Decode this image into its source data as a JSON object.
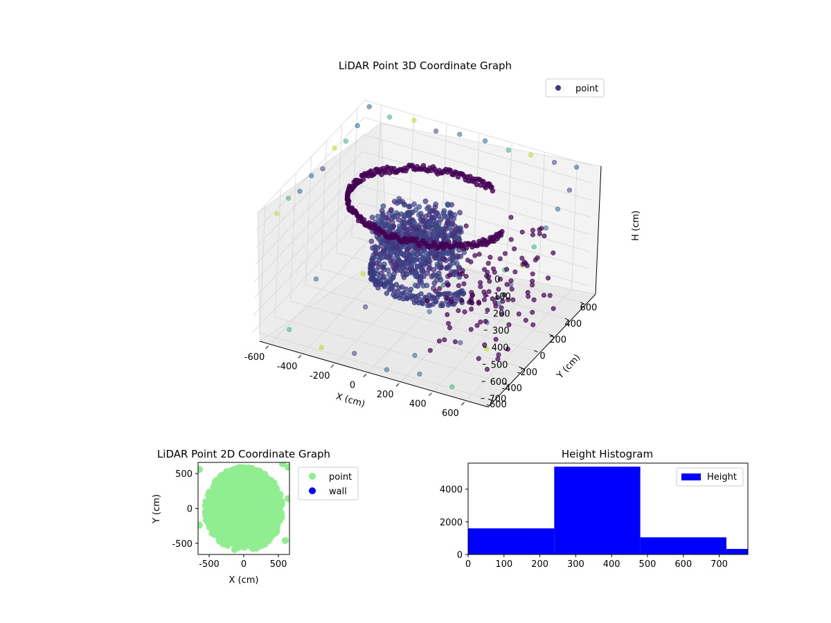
{
  "colors": {
    "point_3d_legend": "#3b3b83",
    "point_2d": "#90ee90",
    "wall_2d": "#0000ff",
    "histogram_bar": "#0000ff",
    "viridis_dark": "#440154",
    "viridis_mid": "#31688e",
    "viridis_teal": "#35b779",
    "viridis_light": "#b8de29",
    "pane_face": "#f2f2f2",
    "grid": "#d6d6d6"
  },
  "chart_data": [
    {
      "type": "scatter",
      "title": "LiDAR Point 3D Coordinate Graph",
      "xlabel": "X (cm)",
      "ylabel": "Y (cm)",
      "zlabel": "H (cm)",
      "xlim": [
        -700,
        700
      ],
      "ylim": [
        -700,
        700
      ],
      "zlim": [
        750,
        0
      ],
      "x_ticks": [
        "-600",
        "-400",
        "-200",
        "0",
        "200",
        "400",
        "600"
      ],
      "y_ticks": [
        "-600",
        "-400",
        "-200",
        "0",
        "200",
        "400",
        "600"
      ],
      "z_ticks": [
        "0",
        "100",
        "200",
        "300",
        "400",
        "500",
        "600",
        "700"
      ],
      "grid": true,
      "legend": {
        "placement": "top-right",
        "entries": [
          "point"
        ]
      },
      "series": [
        {
          "name": "point",
          "ring": {
            "radius": 560,
            "height": 120
          },
          "lower_arc": {
            "radius": 500,
            "height": 480
          },
          "core": {
            "radius": 260,
            "height_min": 200,
            "height_max": 500
          },
          "outliers": [
            [
              -650,
              650,
              0
            ],
            [
              -520,
              640,
              20
            ],
            [
              -380,
              660,
              10
            ],
            [
              -240,
              650,
              30
            ],
            [
              -100,
              660,
              15
            ],
            [
              60,
              650,
              5
            ],
            [
              200,
              660,
              25
            ],
            [
              340,
              650,
              10
            ],
            [
              480,
              660,
              20
            ],
            [
              620,
              650,
              5
            ],
            [
              -650,
              500,
              40
            ],
            [
              -650,
              350,
              60
            ],
            [
              -650,
              200,
              30
            ],
            [
              -650,
              50,
              80
            ],
            [
              -650,
              -100,
              50
            ],
            [
              -650,
              -250,
              70
            ],
            [
              -650,
              -400,
              40
            ],
            [
              -650,
              -550,
              60
            ],
            [
              650,
              500,
              60
            ],
            [
              650,
              350,
              100
            ],
            [
              650,
              200,
              140
            ],
            [
              650,
              50,
              180
            ],
            [
              650,
              -100,
              220
            ],
            [
              650,
              -250,
              260
            ],
            [
              650,
              -400,
              300
            ],
            [
              650,
              -550,
              340
            ],
            [
              -500,
              -650,
              650
            ],
            [
              -300,
              -650,
              700
            ],
            [
              -100,
              -650,
              680
            ],
            [
              100,
              -650,
              720
            ],
            [
              300,
              -650,
              690
            ],
            [
              500,
              -650,
              710
            ],
            [
              -400,
              100,
              650
            ],
            [
              -200,
              -300,
              600
            ],
            [
              0,
              300,
              700
            ],
            [
              200,
              -500,
              680
            ],
            [
              400,
              200,
              620
            ],
            [
              500,
              -200,
              700
            ],
            [
              -300,
              400,
              560
            ],
            [
              100,
              -100,
              640
            ],
            [
              -550,
              -200,
              580
            ],
            [
              300,
              450,
              600
            ],
            [
              -150,
              550,
              520
            ],
            [
              450,
              -450,
              560
            ]
          ]
        }
      ]
    },
    {
      "type": "scatter",
      "title": "LiDAR Point 2D Coordinate Graph",
      "xlabel": "X (cm)",
      "ylabel": "Y (cm)",
      "xlim": [
        -660,
        660
      ],
      "ylim": [
        -660,
        660
      ],
      "x_ticks": [
        "-500",
        "0",
        "500"
      ],
      "y_ticks": [
        "-500",
        "0",
        "500"
      ],
      "legend": {
        "placement": "outside-right",
        "entries": [
          "point",
          "wall"
        ]
      },
      "series": [
        {
          "name": "point",
          "center": [
            0,
            -10
          ],
          "radius_x": 560,
          "radius_y": 600
        },
        {
          "name": "wall",
          "points": []
        }
      ]
    },
    {
      "type": "bar",
      "title": "Height Histogram",
      "xlim": [
        0,
        780
      ],
      "ylim": [
        0,
        5600
      ],
      "x_ticks": [
        "0",
        "100",
        "200",
        "300",
        "400",
        "500",
        "600",
        "700"
      ],
      "y_ticks": [
        "0",
        "2000",
        "4000"
      ],
      "legend": {
        "placement": "top-right",
        "entries": [
          "Height"
        ]
      },
      "series": [
        {
          "name": "Height",
          "bins": [
            {
              "start": 0,
              "end": 240,
              "count": 1600
            },
            {
              "start": 240,
              "end": 480,
              "count": 5380
            },
            {
              "start": 480,
              "end": 720,
              "count": 1050
            },
            {
              "start": 720,
              "end": 780,
              "count": 340
            }
          ]
        }
      ]
    }
  ]
}
